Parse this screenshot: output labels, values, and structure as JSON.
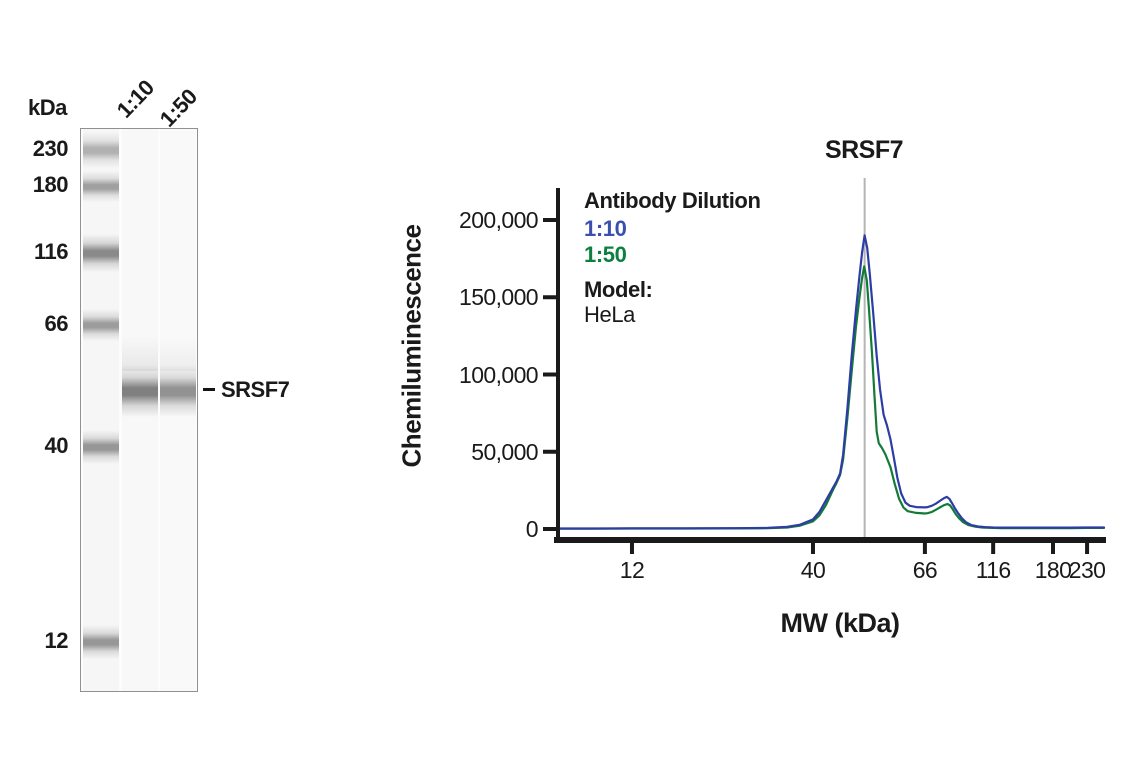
{
  "blot": {
    "kda_header": "kDa",
    "lane_labels": [
      "1:10",
      "1:50"
    ],
    "ladder": [
      {
        "kda": "230",
        "y": 149,
        "h": 18,
        "intensity": 0.42
      },
      {
        "kda": "180",
        "y": 185,
        "h": 13,
        "intensity": 0.52
      },
      {
        "kda": "116",
        "y": 252,
        "h": 20,
        "intensity": 0.66
      },
      {
        "kda": "66",
        "y": 324,
        "h": 14,
        "intensity": 0.55
      },
      {
        "kda": "40",
        "y": 446,
        "h": 16,
        "intensity": 0.58
      },
      {
        "kda": "12",
        "y": 641,
        "h": 16,
        "intensity": 0.58
      }
    ],
    "band_label": "SRSF7",
    "band_y": 390,
    "sample_lanes": [
      {
        "dilution": "1:10",
        "intensity": 0.72
      },
      {
        "dilution": "1:50",
        "intensity": 0.62
      }
    ]
  },
  "chart_data": {
    "type": "line",
    "title": "SRSF7",
    "xlabel": "MW (kDa)",
    "ylabel": "Chemiluminescence",
    "x_scale": "nonlinear-mw",
    "ylim": [
      0,
      215000
    ],
    "grid": false,
    "x_ticks": [
      {
        "label": "12",
        "mw": 12
      },
      {
        "label": "40",
        "mw": 40
      },
      {
        "label": "66",
        "mw": 66
      },
      {
        "label": "116",
        "mw": 116
      },
      {
        "label": "180",
        "mw": 180
      },
      {
        "label": "230",
        "mw": 230
      }
    ],
    "axis_anchors": [
      [
        0.56,
        0
      ],
      [
        12,
        0.1355
      ],
      [
        40,
        0.467
      ],
      [
        66,
        0.672
      ],
      [
        116,
        0.797
      ],
      [
        180,
        0.9066
      ],
      [
        230,
        0.969
      ],
      [
        255,
        1.0
      ]
    ],
    "y_ticks": [
      {
        "label": "0",
        "value": 0
      },
      {
        "label": "50,000",
        "value": 50000
      },
      {
        "label": "100,000",
        "value": 100000
      },
      {
        "label": "150,000",
        "value": 150000
      },
      {
        "label": "200,000",
        "value": 200000
      }
    ],
    "marker": {
      "mw": 52,
      "color": "#b5b5b5"
    },
    "legend": {
      "title": "Antibody Dilution",
      "entries": [
        {
          "label": "1:10",
          "color": "#3a50ae"
        },
        {
          "label": "1:50",
          "color": "#0c8040"
        }
      ],
      "model_label": "Model:",
      "model_value": "HeLa",
      "position": "top-left-inside"
    },
    "series": [
      {
        "name": "1:10",
        "color": "#2c3da3",
        "peak_mw": 52,
        "peak_value": 190000,
        "points": [
          [
            0.6,
            300
          ],
          [
            6,
            300
          ],
          [
            12,
            400
          ],
          [
            20,
            400
          ],
          [
            28,
            500
          ],
          [
            33,
            700
          ],
          [
            36,
            1400
          ],
          [
            38,
            2800
          ],
          [
            40,
            6200
          ],
          [
            41.5,
            11000
          ],
          [
            43,
            18500
          ],
          [
            44.5,
            26000
          ],
          [
            45.5,
            31000
          ],
          [
            46.3,
            36000
          ],
          [
            47,
            48000
          ],
          [
            48,
            78000
          ],
          [
            49,
            112000
          ],
          [
            50,
            142000
          ],
          [
            50.8,
            164000
          ],
          [
            51.4,
            179000
          ],
          [
            52,
            190000
          ],
          [
            52.6,
            182000
          ],
          [
            53.2,
            165000
          ],
          [
            54,
            139000
          ],
          [
            54.8,
            112000
          ],
          [
            55.6,
            90000
          ],
          [
            56.4,
            74000
          ],
          [
            57.2,
            67000
          ],
          [
            58,
            58000
          ],
          [
            58.8,
            46000
          ],
          [
            59.6,
            33000
          ],
          [
            60.5,
            23000
          ],
          [
            61.5,
            17000
          ],
          [
            62.5,
            15000
          ],
          [
            64,
            14200
          ],
          [
            66,
            14000
          ],
          [
            68,
            14200
          ],
          [
            71,
            15000
          ],
          [
            74,
            16400
          ],
          [
            77,
            18200
          ],
          [
            80,
            20000
          ],
          [
            82,
            20800
          ],
          [
            84,
            19400
          ],
          [
            86,
            16600
          ],
          [
            88,
            13400
          ],
          [
            90,
            10600
          ],
          [
            93,
            7000
          ],
          [
            96,
            4400
          ],
          [
            100,
            2500
          ],
          [
            105,
            1600
          ],
          [
            110,
            1200
          ],
          [
            116,
            1000
          ],
          [
            125,
            900
          ],
          [
            140,
            900
          ],
          [
            160,
            900
          ],
          [
            180,
            900
          ],
          [
            205,
            900
          ],
          [
            230,
            1000
          ],
          [
            255,
            1000
          ]
        ]
      },
      {
        "name": "1:50",
        "color": "#147a38",
        "peak_mw": 51.9,
        "peak_value": 170000,
        "points": [
          [
            0.6,
            200
          ],
          [
            6,
            200
          ],
          [
            12,
            300
          ],
          [
            20,
            300
          ],
          [
            28,
            400
          ],
          [
            33,
            500
          ],
          [
            36,
            1000
          ],
          [
            38,
            2200
          ],
          [
            40,
            5000
          ],
          [
            41.5,
            8800
          ],
          [
            43,
            15500
          ],
          [
            44.5,
            24500
          ],
          [
            45.5,
            30000
          ],
          [
            46.3,
            35000
          ],
          [
            47,
            45000
          ],
          [
            48,
            72000
          ],
          [
            49,
            102000
          ],
          [
            50,
            131000
          ],
          [
            50.8,
            150000
          ],
          [
            51.4,
            162500
          ],
          [
            51.9,
            170000
          ],
          [
            52.5,
            161000
          ],
          [
            53,
            143000
          ],
          [
            53.7,
            114000
          ],
          [
            54.3,
            86000
          ],
          [
            54.8,
            63000
          ],
          [
            55.3,
            55500
          ],
          [
            56,
            52500
          ],
          [
            56.8,
            48500
          ],
          [
            58,
            40000
          ],
          [
            59,
            29000
          ],
          [
            60,
            19500
          ],
          [
            61,
            14000
          ],
          [
            62,
            11500
          ],
          [
            64,
            10400
          ],
          [
            66,
            10000
          ],
          [
            68,
            10200
          ],
          [
            71,
            11000
          ],
          [
            74,
            12400
          ],
          [
            77,
            14000
          ],
          [
            80,
            15400
          ],
          [
            82.5,
            16200
          ],
          [
            84.5,
            15200
          ],
          [
            86.5,
            12600
          ],
          [
            88.5,
            9800
          ],
          [
            91,
            7000
          ],
          [
            94,
            4400
          ],
          [
            98,
            2500
          ],
          [
            103,
            1500
          ],
          [
            108,
            1000
          ],
          [
            116,
            700
          ],
          [
            125,
            600
          ],
          [
            140,
            600
          ],
          [
            160,
            600
          ],
          [
            180,
            600
          ],
          [
            205,
            600
          ],
          [
            230,
            700
          ],
          [
            255,
            700
          ]
        ]
      }
    ]
  }
}
